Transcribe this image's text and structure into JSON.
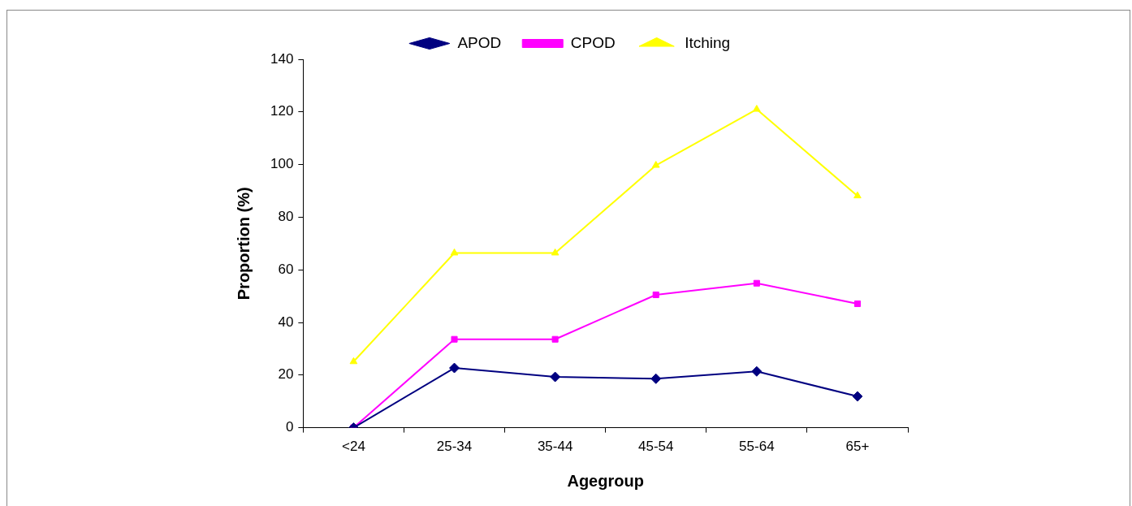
{
  "chart_data": {
    "type": "line",
    "xlabel": "Agegroup",
    "ylabel": "Proportion (%)",
    "categories": [
      "<24",
      "25-34",
      "35-44",
      "45-54",
      "55-64",
      "65+"
    ],
    "series": [
      {
        "name": "APOD",
        "color": "#000080",
        "marker": "diamond",
        "values": [
          0,
          22.7,
          19.3,
          18.6,
          21.4,
          11.9
        ]
      },
      {
        "name": "CPOD",
        "color": "#ff00ff",
        "marker": "square",
        "values": [
          0,
          33.6,
          33.6,
          50.5,
          54.9,
          47.1
        ]
      },
      {
        "name": "Itching",
        "color": "#ffff00",
        "marker": "triangle",
        "values": [
          25.1,
          66.4,
          66.4,
          99.7,
          121,
          88.1
        ]
      }
    ],
    "ylim": [
      0,
      140
    ],
    "yticks": [
      0,
      20,
      40,
      60,
      80,
      100,
      120,
      140
    ],
    "grid": false,
    "legend": "top",
    "line_style": "solid"
  }
}
